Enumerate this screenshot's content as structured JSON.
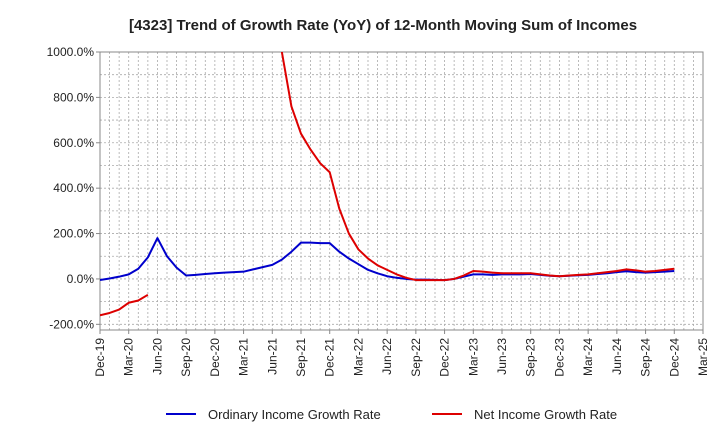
{
  "chart_data": {
    "type": "line",
    "title": "[4323]  Trend of Growth Rate (YoY) of 12-Month Moving Sum of Incomes",
    "xlabel": "",
    "ylabel": "",
    "ylim": [
      -225,
      1000
    ],
    "y_ticks": [
      -200,
      0,
      200,
      400,
      600,
      800,
      1000
    ],
    "y_tick_labels": [
      "-200.0%",
      "0.0%",
      "200.0%",
      "400.0%",
      "600.0%",
      "800.0%",
      "1000.0%"
    ],
    "x_ticks": [
      "2019-12",
      "2020-03",
      "2020-06",
      "2020-09",
      "2020-12",
      "2021-03",
      "2021-06",
      "2021-09",
      "2021-12",
      "2022-03",
      "2022-06",
      "2022-09",
      "2022-12",
      "2023-03",
      "2023-06",
      "2023-09",
      "2023-12",
      "2024-03",
      "2024-06",
      "2024-09",
      "2024-12",
      "2025-03"
    ],
    "x_tick_labels": [
      "Dec-19",
      "Mar-20",
      "Jun-20",
      "Sep-20",
      "Dec-20",
      "Mar-21",
      "Jun-21",
      "Sep-21",
      "Dec-21",
      "Mar-22",
      "Jun-22",
      "Sep-22",
      "Dec-22",
      "Mar-23",
      "Jun-23",
      "Sep-23",
      "Dec-23",
      "Mar-24",
      "Jun-24",
      "Sep-24",
      "Dec-24",
      "Mar-25"
    ],
    "grid": true,
    "legend_position": "bottom",
    "series": [
      {
        "name": "Ordinary Income Growth Rate",
        "color": "#0000cc",
        "x": [
          "2019-12",
          "2020-01",
          "2020-02",
          "2020-03",
          "2020-04",
          "2020-05",
          "2020-06",
          "2020-07",
          "2020-08",
          "2020-09",
          "2020-10",
          "2020-11",
          "2020-12",
          "2021-01",
          "2021-02",
          "2021-03",
          "2021-04",
          "2021-05",
          "2021-06",
          "2021-07",
          "2021-08",
          "2021-09",
          "2021-10",
          "2021-11",
          "2021-12",
          "2022-01",
          "2022-02",
          "2022-03",
          "2022-04",
          "2022-05",
          "2022-06",
          "2022-07",
          "2022-08",
          "2022-09",
          "2022-10",
          "2022-11",
          "2022-12",
          "2023-01",
          "2023-02",
          "2023-03",
          "2023-04",
          "2023-05",
          "2023-06",
          "2023-07",
          "2023-08",
          "2023-09",
          "2023-10",
          "2023-11",
          "2023-12",
          "2024-01",
          "2024-02",
          "2024-03",
          "2024-04",
          "2024-05",
          "2024-06",
          "2024-07",
          "2024-08",
          "2024-09",
          "2024-10",
          "2024-11",
          "2024-12"
        ],
        "values": [
          -5,
          2,
          10,
          20,
          45,
          95,
          180,
          100,
          50,
          15,
          18,
          22,
          25,
          28,
          30,
          32,
          42,
          52,
          62,
          85,
          120,
          160,
          160,
          158,
          158,
          120,
          90,
          65,
          40,
          25,
          12,
          5,
          0,
          -3,
          -3,
          -4,
          -5,
          0,
          10,
          20,
          20,
          18,
          20,
          20,
          20,
          22,
          18,
          14,
          12,
          14,
          16,
          18,
          22,
          25,
          30,
          34,
          30,
          28,
          30,
          32,
          35
        ]
      },
      {
        "name": "Net Income Growth Rate",
        "color": "#dd0000",
        "x": [
          "2019-12",
          "2020-01",
          "2020-02",
          "2020-03",
          "2020-04",
          "2020-05",
          "2021-07",
          "2021-08",
          "2021-09",
          "2021-10",
          "2021-11",
          "2021-12",
          "2022-01",
          "2022-02",
          "2022-03",
          "2022-04",
          "2022-05",
          "2022-06",
          "2022-07",
          "2022-08",
          "2022-09",
          "2022-10",
          "2022-11",
          "2022-12",
          "2023-01",
          "2023-02",
          "2023-03",
          "2023-04",
          "2023-05",
          "2023-06",
          "2023-07",
          "2023-08",
          "2023-09",
          "2023-10",
          "2023-11",
          "2023-12",
          "2024-01",
          "2024-02",
          "2024-03",
          "2024-04",
          "2024-05",
          "2024-06",
          "2024-07",
          "2024-08",
          "2024-09",
          "2024-10",
          "2024-11",
          "2024-12"
        ],
        "values": [
          -160,
          -150,
          -135,
          -105,
          -95,
          -70,
          1000,
          760,
          640,
          570,
          510,
          470,
          310,
          200,
          130,
          90,
          60,
          40,
          20,
          5,
          -5,
          -5,
          -5,
          -5,
          0,
          15,
          35,
          32,
          28,
          25,
          25,
          25,
          25,
          20,
          15,
          12,
          15,
          18,
          20,
          25,
          30,
          35,
          42,
          38,
          32,
          35,
          40,
          45
        ]
      }
    ]
  }
}
